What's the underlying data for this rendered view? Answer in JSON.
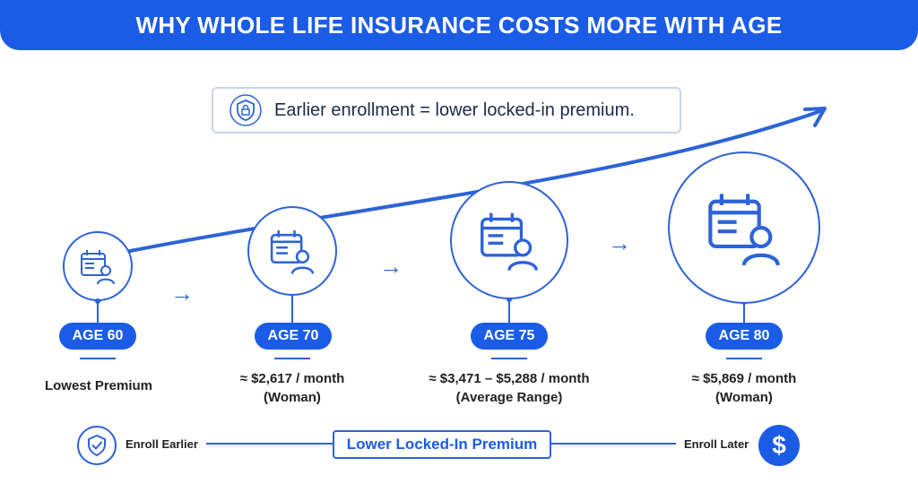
{
  "header": {
    "title": "WHY WHOLE LIFE INSURANCE COSTS MORE WITH AGE"
  },
  "callout": {
    "text": "Earlier enrollment = lower locked-in premium.",
    "icon": "shield-lock-icon"
  },
  "stages": [
    {
      "age": "AGE 60",
      "line1": "Lowest Premium",
      "line2": ""
    },
    {
      "age": "AGE 70",
      "line1": "≈ $2,617 / month",
      "line2": "(Woman)"
    },
    {
      "age": "AGE 75",
      "line1": "≈ $3,471 – $5,288 / month",
      "line2": "(Average Range)"
    },
    {
      "age": "AGE 80",
      "line1": "≈ $5,869 / month",
      "line2": "(Woman)"
    }
  ],
  "scale": {
    "left": "Enroll Earlier",
    "center": "Lower Locked-In Premium",
    "right": "Enroll Later",
    "right_icon_glyph": "$"
  },
  "colors": {
    "primary": "#1b5ce6",
    "line": "#2d63d8",
    "header_text": "#ffffff"
  }
}
